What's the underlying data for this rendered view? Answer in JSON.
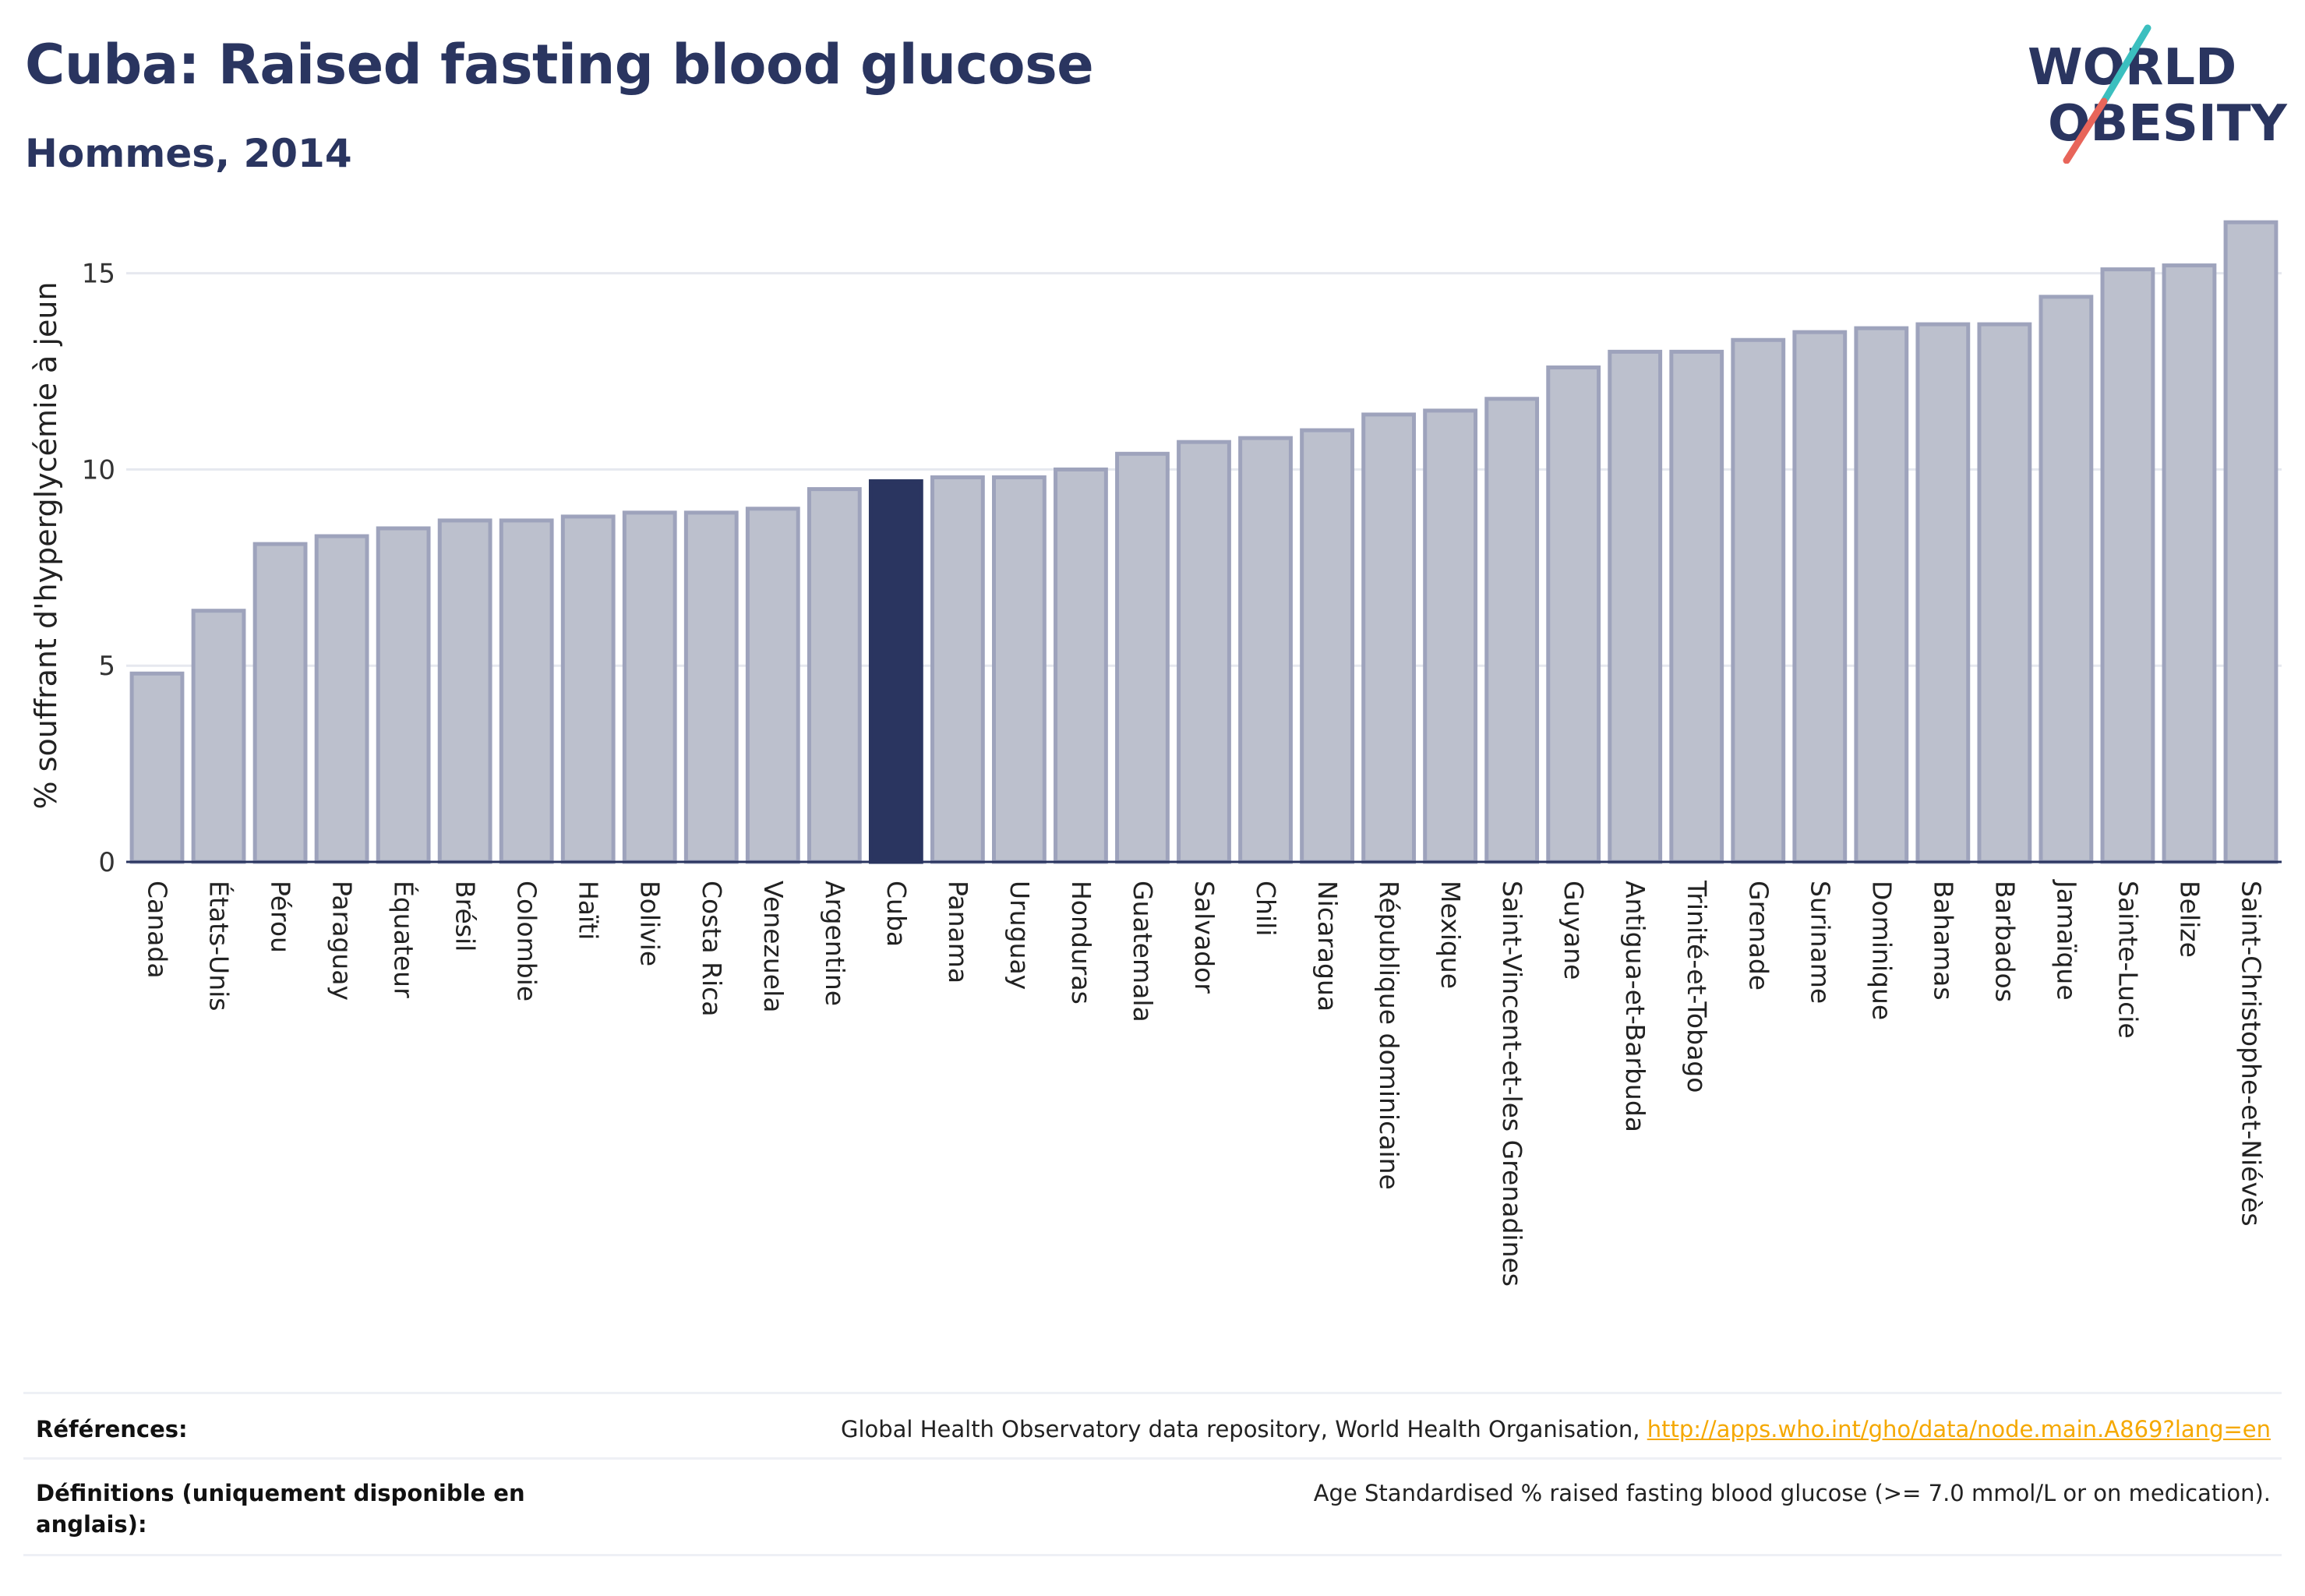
{
  "title": "Cuba: Raised fasting blood glucose",
  "subtitle": "Hommes, 2014",
  "logo": {
    "line1": "WORLD",
    "line2": "OBESITY"
  },
  "colors": {
    "highlight": "#2a3560",
    "bar_fill": "#bcc0cd",
    "bar_stroke": "#9ea3bc",
    "logo_teal": "#3bbfbf",
    "logo_coral": "#e8655a",
    "link": "#f5a800"
  },
  "chart_data": {
    "type": "bar",
    "ylabel": "% souffrant d'hyperglycémie à jeun",
    "xlabel": "",
    "ylim": [
      0,
      16.8
    ],
    "yticks": [
      0,
      5,
      10,
      15
    ],
    "grid": true,
    "highlight": "Cuba",
    "categories": [
      "Canada",
      "États-Unis",
      "Pérou",
      "Paraguay",
      "Équateur",
      "Brésil",
      "Colombie",
      "Haïti",
      "Bolivie",
      "Costa Rica",
      "Venezuela",
      "Argentine",
      "Cuba",
      "Panama",
      "Uruguay",
      "Honduras",
      "Guatemala",
      "Salvador",
      "Chili",
      "Nicaragua",
      "République dominicaine",
      "Mexique",
      "Saint-Vincent-et-les Grenadines",
      "Guyane",
      "Antigua-et-Barbuda",
      "Trinité-et-Tobago",
      "Grenade",
      "Suriname",
      "Dominique",
      "Bahamas",
      "Barbados",
      "Jamaïque",
      "Sainte-Lucie",
      "Belize",
      "Saint-Christophe-et-Niévès"
    ],
    "values": [
      4.8,
      6.4,
      8.1,
      8.3,
      8.5,
      8.7,
      8.7,
      8.8,
      8.9,
      8.9,
      9.0,
      9.5,
      9.7,
      9.8,
      9.8,
      10.0,
      10.4,
      10.7,
      10.8,
      11.0,
      11.4,
      11.5,
      11.8,
      12.6,
      13.0,
      13.0,
      13.3,
      13.5,
      13.6,
      13.7,
      13.7,
      14.4,
      15.1,
      15.2,
      16.3
    ]
  },
  "footer": {
    "references_label": "Références:",
    "references_text": "Global Health Observatory data repository, World Health Organisation, ",
    "references_link": "http://apps.who.int/gho/data/node.main.A869?lang=en",
    "definitions_label": "Définitions (uniquement disponible en anglais):",
    "definitions_text": "Age Standardised % raised fasting blood glucose (>= 7.0 mmol/L or on medication)."
  }
}
